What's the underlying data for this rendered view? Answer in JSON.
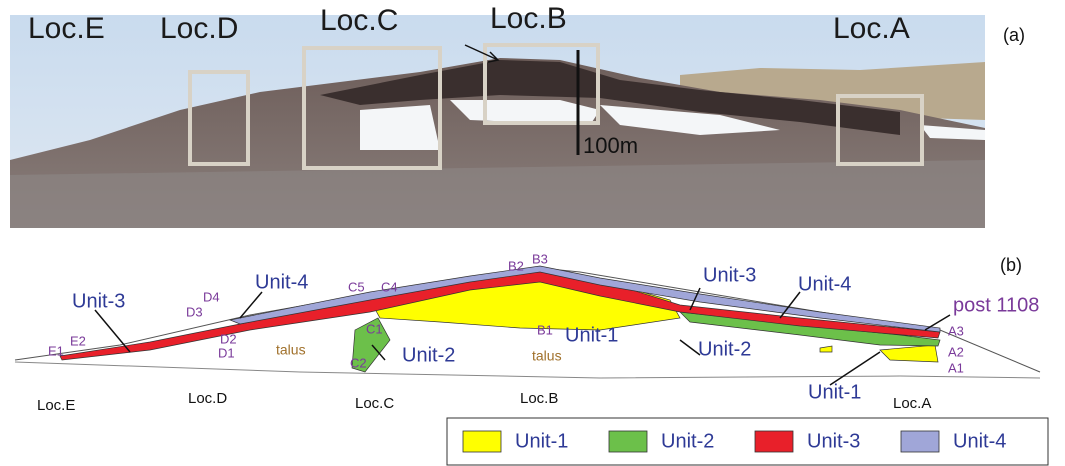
{
  "photo": {
    "panel_label": "(a)",
    "locations": [
      "Loc.E",
      "Loc.D",
      "Loc.C",
      "Loc.B",
      "Loc.A"
    ],
    "scale_label": "100m"
  },
  "diagram": {
    "panel_label": "(b)",
    "unit_labels": [
      "Unit-3",
      "Unit-4",
      "Unit-2",
      "Unit-1",
      "Unit-3",
      "Unit-4",
      "Unit-2",
      "Unit-1"
    ],
    "annotation": "post 1108",
    "talus_labels": [
      "talus",
      "talus"
    ],
    "sample_points": [
      "E1",
      "E2",
      "D1",
      "D2",
      "D3",
      "D4",
      "C5",
      "C4",
      "C1",
      "C2",
      "B2",
      "B3",
      "B1",
      "A3",
      "A2",
      "A1"
    ],
    "locations": [
      "Loc.E",
      "Loc.D",
      "Loc.C",
      "Loc.B",
      "Loc.A"
    ]
  },
  "legend": {
    "items": [
      {
        "label": "Unit-1",
        "color": "#ffff00"
      },
      {
        "label": "Unit-2",
        "color": "#6cc04a"
      },
      {
        "label": "Unit-3",
        "color": "#e8202a"
      },
      {
        "label": "Unit-4",
        "color": "#a0a6d8"
      }
    ]
  }
}
